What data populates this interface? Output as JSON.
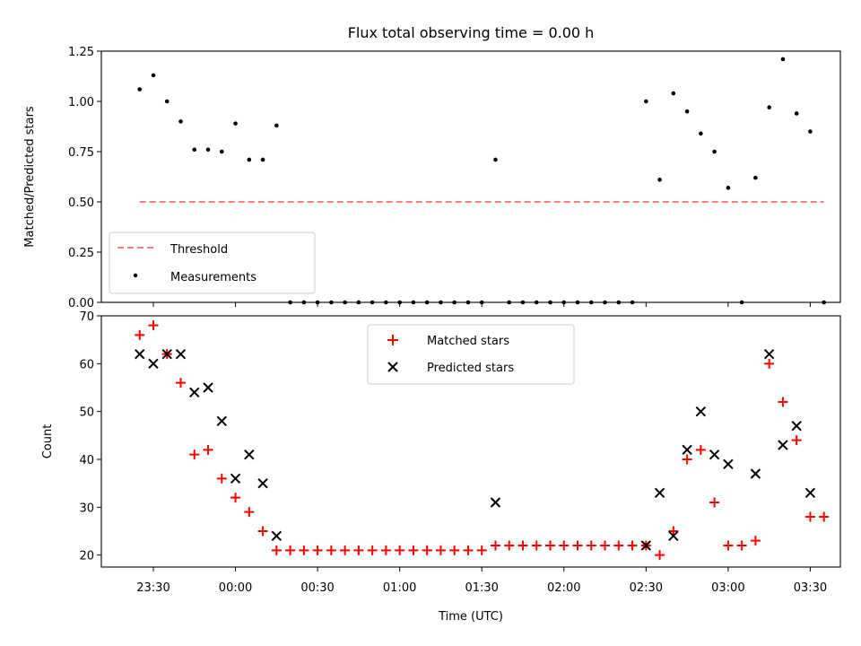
{
  "colors": {
    "threshold": "#ff7f7f",
    "measurement": "#000000",
    "matched": "#ff0000",
    "predicted": "#000000"
  },
  "chart_data": [
    {
      "type": "scatter",
      "title": "Flux total observing time = 0.00 h",
      "ylabel": "Matched/Predicted stars",
      "ylim": [
        0,
        1.25
      ],
      "yticks": [
        "0.00",
        "0.25",
        "0.50",
        "0.75",
        "1.00",
        "1.25"
      ],
      "xlim": [
        "23:11",
        "03:41"
      ],
      "grid": false,
      "legend_position": "lower-left",
      "series": [
        {
          "name": "Threshold",
          "kind": "dashed-line",
          "x": [
            "23:25",
            "03:35"
          ],
          "y": [
            0.5,
            0.5
          ]
        },
        {
          "name": "Measurements",
          "kind": "dot",
          "x": [
            "23:25",
            "23:30",
            "23:35",
            "23:40",
            "23:45",
            "23:50",
            "23:55",
            "00:00",
            "00:05",
            "00:10",
            "00:15",
            "00:20",
            "00:25",
            "00:30",
            "00:35",
            "00:40",
            "00:45",
            "00:50",
            "00:55",
            "01:00",
            "01:05",
            "01:10",
            "01:15",
            "01:20",
            "01:25",
            "01:30",
            "01:35",
            "01:40",
            "01:45",
            "01:50",
            "01:55",
            "02:00",
            "02:05",
            "02:10",
            "02:15",
            "02:20",
            "02:25",
            "02:30",
            "02:35",
            "02:40",
            "02:45",
            "02:50",
            "02:55",
            "03:00",
            "03:05",
            "03:10",
            "03:15",
            "03:20",
            "03:25",
            "03:30",
            "03:35"
          ],
          "y": [
            1.06,
            1.13,
            1.0,
            0.9,
            0.76,
            0.76,
            0.75,
            0.89,
            0.71,
            0.71,
            0.88,
            0,
            0,
            0,
            0,
            0,
            0,
            0,
            0,
            0,
            0,
            0,
            0,
            0,
            0,
            0,
            0.71,
            0,
            0,
            0,
            0,
            0,
            0,
            0,
            0,
            0,
            0,
            1.0,
            0.61,
            1.04,
            0.95,
            0.84,
            0.75,
            0.57,
            0,
            0.62,
            0.97,
            1.21,
            0.94,
            0.85,
            0
          ]
        }
      ]
    },
    {
      "type": "scatter",
      "xlabel": "Time (UTC)",
      "ylabel": "Count",
      "ylim": [
        17.5,
        70
      ],
      "yticks": [
        "20",
        "30",
        "40",
        "50",
        "60",
        "70"
      ],
      "xlim": [
        "23:11",
        "03:41"
      ],
      "xticks": [
        "23:30",
        "00:00",
        "00:30",
        "01:00",
        "01:30",
        "02:00",
        "02:30",
        "03:00",
        "03:30"
      ],
      "grid": false,
      "legend_position": "upper-center",
      "series": [
        {
          "name": "Matched stars",
          "kind": "plus",
          "x": [
            "23:25",
            "23:30",
            "23:35",
            "23:40",
            "23:45",
            "23:50",
            "23:55",
            "00:00",
            "00:05",
            "00:10",
            "00:15",
            "00:20",
            "00:25",
            "00:30",
            "00:35",
            "00:40",
            "00:45",
            "00:50",
            "00:55",
            "01:00",
            "01:05",
            "01:10",
            "01:15",
            "01:20",
            "01:25",
            "01:30",
            "01:35",
            "01:40",
            "01:45",
            "01:50",
            "01:55",
            "02:00",
            "02:05",
            "02:10",
            "02:15",
            "02:20",
            "02:25",
            "02:30",
            "02:35",
            "02:40",
            "02:45",
            "02:50",
            "02:55",
            "03:00",
            "03:05",
            "03:10",
            "03:15",
            "03:20",
            "03:25",
            "03:30",
            "03:35"
          ],
          "y": [
            66,
            68,
            62,
            56,
            41,
            42,
            36,
            32,
            29,
            25,
            21,
            21,
            21,
            21,
            21,
            21,
            21,
            21,
            21,
            21,
            21,
            21,
            21,
            21,
            21,
            21,
            22,
            22,
            22,
            22,
            22,
            22,
            22,
            22,
            22,
            22,
            22,
            22,
            20,
            25,
            40,
            42,
            31,
            22,
            22,
            23,
            60,
            52,
            44,
            28,
            28
          ]
        },
        {
          "name": "Predicted stars",
          "kind": "x",
          "x": [
            "23:25",
            "23:30",
            "23:35",
            "23:40",
            "23:45",
            "23:50",
            "23:55",
            "00:00",
            "00:05",
            "00:10",
            "00:15",
            "01:35",
            "02:30",
            "02:35",
            "02:40",
            "02:45",
            "02:50",
            "02:55",
            "03:00",
            "03:10",
            "03:15",
            "03:20",
            "03:25",
            "03:30"
          ],
          "y": [
            62,
            60,
            62,
            62,
            54,
            55,
            48,
            36,
            41,
            35,
            24,
            31,
            22,
            33,
            24,
            42,
            50,
            41,
            39,
            37,
            62,
            43,
            47,
            33
          ]
        }
      ]
    }
  ]
}
